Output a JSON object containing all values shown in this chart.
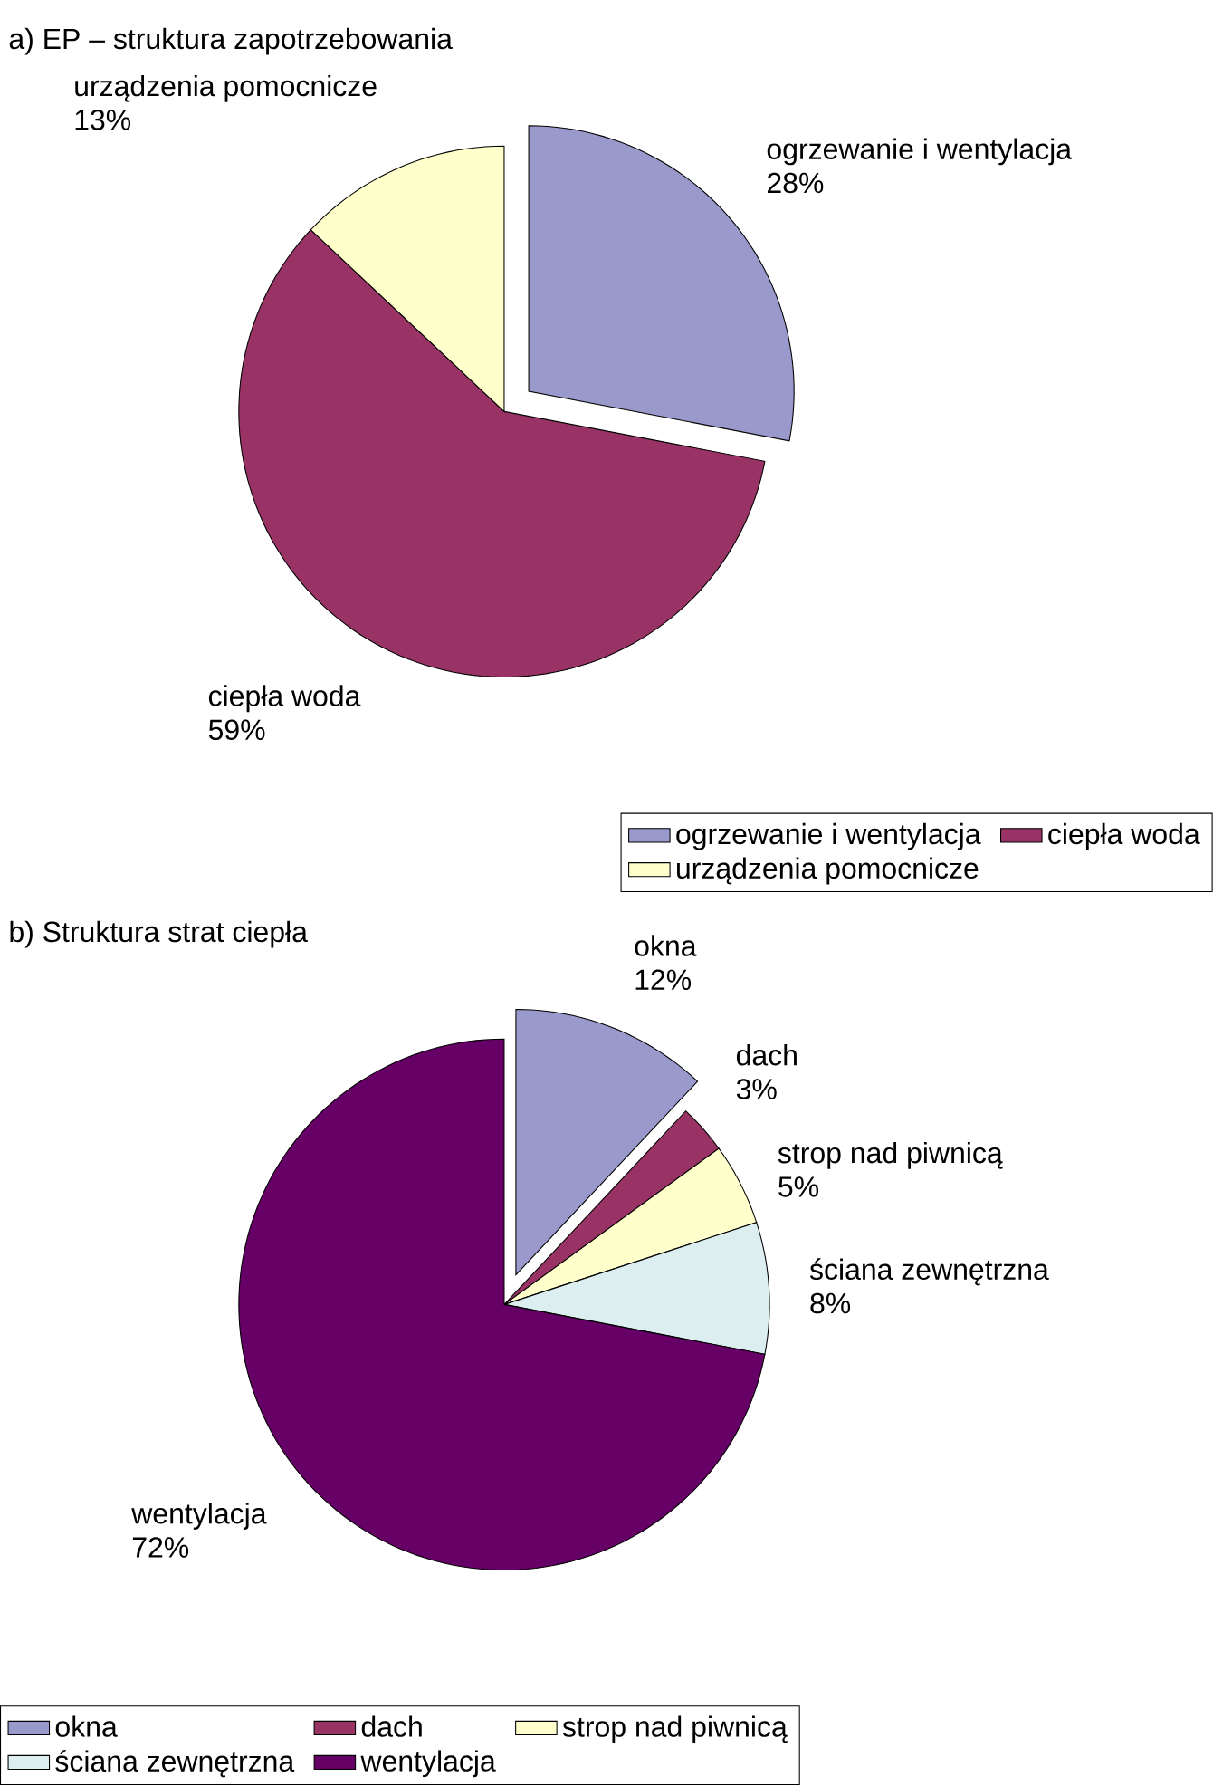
{
  "chart_data": [
    {
      "type": "pie",
      "title": "a)  EP – struktura zapotrzebowania",
      "categories": [
        "ogrzewanie i wentylacja",
        "ciepła woda",
        "urządzenia pomocnicze"
      ],
      "values": [
        28,
        59,
        13
      ],
      "value_labels": [
        "28%",
        "59%",
        "13%"
      ],
      "colors": [
        "#9999cc",
        "#993366",
        "#ffffcc"
      ],
      "legend": "bottom right"
    },
    {
      "type": "pie",
      "title": "b) Struktura strat ciepła",
      "categories": [
        "okna",
        "dach",
        "strop nad piwnicą",
        "ściana zewnętrzna",
        "wentylacja"
      ],
      "values": [
        12,
        3,
        5,
        8,
        72
      ],
      "value_labels": [
        "12%",
        "3%",
        "5%",
        "8%",
        "72%"
      ],
      "colors": [
        "#9999cc",
        "#993366",
        "#ffffcc",
        "#ddeef0",
        "#660066"
      ],
      "legend": "bottom left"
    }
  ]
}
